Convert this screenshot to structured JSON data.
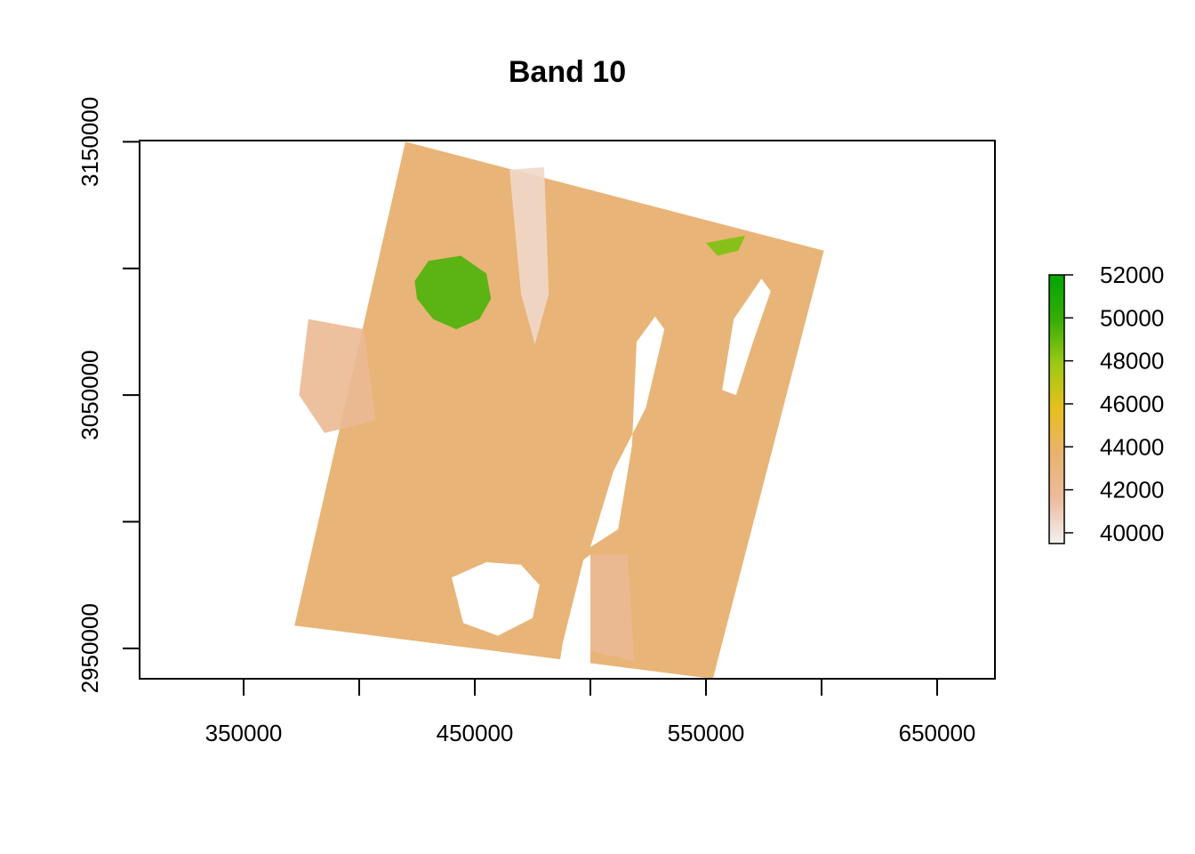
{
  "chart_data": {
    "type": "heatmap",
    "title": "Band 10",
    "xlabel": "",
    "ylabel": "",
    "xlim": [
      305000,
      675000
    ],
    "ylim": [
      2938000,
      3150500
    ],
    "x_ticks": [
      350000,
      400000,
      450000,
      500000,
      550000,
      600000,
      650000
    ],
    "x_tick_labels": [
      "350000",
      "",
      "450000",
      "",
      "550000",
      "",
      "650000"
    ],
    "y_ticks": [
      2950000,
      3000000,
      3050000,
      3100000,
      3150000
    ],
    "y_tick_labels": [
      "2950000",
      "",
      "3050000",
      "",
      "3150000"
    ],
    "legend": {
      "placement": "right",
      "min": 39500,
      "max": 52000,
      "ticks": [
        40000,
        42000,
        44000,
        46000,
        48000,
        50000,
        52000
      ],
      "tick_labels": [
        "40000",
        "42000",
        "44000",
        "46000",
        "48000",
        "50000",
        "52000"
      ],
      "colors": [
        "#f2f2f2",
        "#ecbb9d",
        "#e8b36f",
        "#e6c01e",
        "#9dca14",
        "#38ad06",
        "#00a600"
      ]
    },
    "scene": {
      "footprint": [
        [
          420000,
          3150000
        ],
        [
          601000,
          3107000
        ],
        [
          553000,
          2938000
        ],
        [
          372000,
          2959000
        ]
      ],
      "background_value": 43300,
      "regions": [
        {
          "name": "",
          "value": 49500,
          "polygon": [
            [
              424000,
              3095000
            ],
            [
              430000,
              3103000
            ],
            [
              444000,
              3105000
            ],
            [
              455000,
              3098000
            ],
            [
              457000,
              3088000
            ],
            [
              452000,
              3080000
            ],
            [
              442000,
              3076000
            ],
            [
              432000,
              3080000
            ],
            [
              425000,
              3088000
            ]
          ]
        },
        {
          "name": "",
          "value": 48500,
          "polygon": [
            [
              550000,
              3110000
            ],
            [
              567000,
              3113000
            ],
            [
              564000,
              3107000
            ],
            [
              555000,
              3105000
            ]
          ]
        },
        {
          "name": "",
          "value": 40500,
          "polygon": [
            [
              465000,
              3139000
            ],
            [
              480000,
              3140000
            ],
            [
              482000,
              3090000
            ],
            [
              476000,
              3070000
            ],
            [
              470000,
              3090000
            ]
          ]
        },
        {
          "name": "",
          "value": 42000,
          "polygon": [
            [
              500000,
              2987000
            ],
            [
              516000,
              2987000
            ],
            [
              519000,
              2945000
            ],
            [
              500000,
              2949000
            ]
          ]
        },
        {
          "name": "",
          "value": 42000,
          "polygon": [
            [
              378000,
              3080000
            ],
            [
              402000,
              3076000
            ],
            [
              407000,
              3040000
            ],
            [
              385000,
              3035000
            ],
            [
              374000,
              3050000
            ]
          ]
        }
      ],
      "nodata": [
        {
          "name": "",
          "polygon": [
            [
              440000,
              2978000
            ],
            [
              455000,
              2984000
            ],
            [
              470000,
              2983000
            ],
            [
              478000,
              2975000
            ],
            [
              475000,
              2962000
            ],
            [
              460000,
              2955000
            ],
            [
              445000,
              2960000
            ]
          ]
        },
        {
          "name": "",
          "polygon": [
            [
              520000,
              3071000
            ],
            [
              528000,
              3081000
            ],
            [
              532000,
              3076000
            ],
            [
              524000,
              3045000
            ],
            [
              510000,
              3020000
            ],
            [
              500000,
              2990000
            ],
            [
              512000,
              2997000
            ],
            [
              518000,
              3030000
            ]
          ]
        },
        {
          "name": "",
          "polygon": [
            [
              562000,
              3080000
            ],
            [
              574000,
              3096000
            ],
            [
              578000,
              3091000
            ],
            [
              570000,
              3070000
            ],
            [
              563000,
              3050000
            ],
            [
              557000,
              3052000
            ]
          ]
        },
        {
          "name": "",
          "polygon": [
            [
              500000,
              2987000
            ],
            [
              500000,
              2940000
            ],
            [
              486000,
              2940000
            ],
            [
              488000,
              2952000
            ],
            [
              497000,
              2985000
            ]
          ]
        }
      ]
    }
  }
}
